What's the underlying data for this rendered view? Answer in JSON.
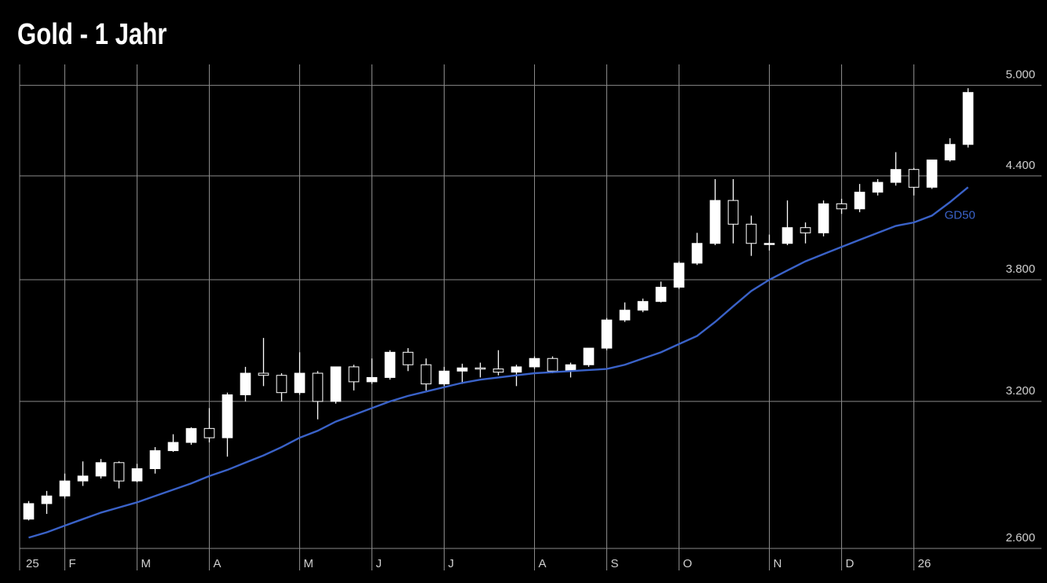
{
  "chart_data": {
    "type": "candlestick",
    "title": "Gold - 1 Jahr",
    "log_scale": true,
    "grid": true,
    "up_color": "#ffffff",
    "down_color": "#000000",
    "wick_color": "#ffffff",
    "categories": [
      "25",
      null,
      "F",
      null,
      null,
      null,
      "M",
      null,
      null,
      null,
      "A",
      null,
      null,
      null,
      null,
      "M",
      null,
      null,
      null,
      "J",
      null,
      null,
      null,
      "J",
      null,
      null,
      null,
      null,
      "A",
      null,
      null,
      null,
      "S",
      null,
      null,
      null,
      "O",
      null,
      null,
      null,
      null,
      "N",
      null,
      null,
      null,
      "D",
      null,
      null,
      null,
      "26",
      null,
      null,
      null
    ],
    "ylim": [
      2580,
      5150
    ],
    "yticks": [
      {
        "value": 2600,
        "label": "2.600"
      },
      {
        "value": 3200,
        "label": "3.200"
      },
      {
        "value": 3800,
        "label": "3.800"
      },
      {
        "value": 4400,
        "label": "4.400"
      },
      {
        "value": 5000,
        "label": "5.000"
      }
    ],
    "series": [
      {
        "type": "candlestick",
        "open": [
          2710,
          2770,
          2800,
          2860,
          2880,
          2935,
          2860,
          2910,
          2985,
          3020,
          3080,
          3040,
          3230,
          3330,
          3320,
          3240,
          3330,
          3200,
          3360,
          3290,
          3310,
          3430,
          3370,
          3280,
          3340,
          3355,
          3350,
          3335,
          3360,
          3400,
          3340,
          3370,
          3450,
          3590,
          3640,
          3685,
          3760,
          3890,
          4000,
          4250,
          4110,
          4000,
          4000,
          4090,
          4060,
          4230,
          4200,
          4300,
          4360,
          4440,
          4330,
          4500,
          4600
        ],
        "high": [
          2780,
          2820,
          2890,
          2940,
          2950,
          2940,
          2930,
          3000,
          3055,
          3085,
          3170,
          3240,
          3360,
          3500,
          3330,
          3430,
          3340,
          3360,
          3370,
          3400,
          3440,
          3450,
          3400,
          3360,
          3375,
          3380,
          3440,
          3370,
          3410,
          3410,
          3380,
          3450,
          3600,
          3680,
          3700,
          3790,
          3900,
          4060,
          4380,
          4380,
          4160,
          4050,
          4250,
          4120,
          4250,
          4260,
          4350,
          4380,
          4550,
          4450,
          4500,
          4640,
          4980
        ],
        "low": [
          2705,
          2730,
          2790,
          2840,
          2870,
          2830,
          2855,
          2890,
          2980,
          3010,
          3020,
          2960,
          3200,
          3270,
          3200,
          3230,
          3120,
          3190,
          3250,
          3280,
          3300,
          3340,
          3250,
          3270,
          3280,
          3310,
          3320,
          3270,
          3350,
          3330,
          3310,
          3360,
          3440,
          3580,
          3630,
          3680,
          3750,
          3880,
          3990,
          4000,
          3930,
          3960,
          3990,
          4000,
          4040,
          4170,
          4180,
          4280,
          4340,
          4280,
          4320,
          4490,
          4580
        ],
        "close": [
          2770,
          2800,
          2860,
          2880,
          2935,
          2860,
          2910,
          2985,
          3020,
          3080,
          3040,
          3230,
          3330,
          3320,
          3240,
          3330,
          3200,
          3360,
          3290,
          3310,
          3430,
          3370,
          3280,
          3340,
          3355,
          3350,
          3335,
          3360,
          3400,
          3340,
          3370,
          3450,
          3590,
          3640,
          3685,
          3760,
          3890,
          4000,
          4250,
          4110,
          4000,
          4000,
          4090,
          4060,
          4230,
          4200,
          4300,
          4360,
          4440,
          4330,
          4500,
          4600,
          4950
        ]
      },
      {
        "type": "line",
        "name": "GD50",
        "color": "#3a62c8",
        "values": [
          2640,
          2660,
          2685,
          2710,
          2735,
          2755,
          2775,
          2800,
          2825,
          2850,
          2880,
          2905,
          2935,
          2965,
          3000,
          3040,
          3070,
          3110,
          3140,
          3170,
          3200,
          3225,
          3245,
          3265,
          3285,
          3300,
          3310,
          3320,
          3330,
          3335,
          3340,
          3345,
          3350,
          3370,
          3400,
          3430,
          3470,
          3510,
          3580,
          3660,
          3740,
          3800,
          3850,
          3900,
          3940,
          3980,
          4020,
          4060,
          4100,
          4120,
          4160,
          4240,
          4330
        ]
      }
    ]
  }
}
